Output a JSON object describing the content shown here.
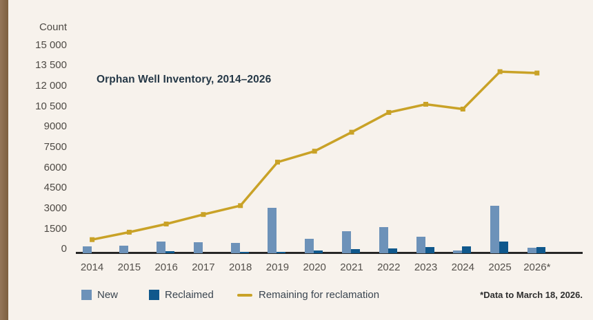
{
  "page": {
    "background_color": "#f7f2ec",
    "accent_bar_color": "#85684a"
  },
  "chart_data": {
    "type": "bar+line combo",
    "title": "Orphan Well Inventory, 2014–2026",
    "ylabel": "Count",
    "categories": [
      "2014",
      "2015",
      "2016",
      "2017",
      "2018",
      "2019",
      "2020",
      "2021",
      "2022",
      "2023",
      "2024",
      "2025",
      "2026*"
    ],
    "series": [
      {
        "name": "New",
        "type": "bar",
        "color": "#6d92b9",
        "values": [
          500,
          550,
          850,
          800,
          750,
          3350,
          1050,
          1600,
          1900,
          1200,
          200,
          3500,
          400
        ]
      },
      {
        "name": "Reclaimed",
        "type": "bar",
        "color": "#10588c",
        "values": [
          0,
          0,
          150,
          0,
          100,
          100,
          200,
          280,
          350,
          450,
          500,
          850,
          450
        ]
      },
      {
        "name": "Remaining for reclamation",
        "type": "line",
        "color": "#c9a227",
        "values": [
          950,
          1500,
          2100,
          2800,
          3450,
          6650,
          7450,
          8850,
          10300,
          10900,
          10550,
          13300,
          13200
        ]
      }
    ],
    "y_ticks": [
      "15 000",
      "13 500",
      "12 000",
      "10 500",
      "9000",
      "7500",
      "6000",
      "4500",
      "3000",
      "1500",
      "0"
    ],
    "ylim": [
      0,
      15000
    ],
    "y_tick_step": 1500,
    "grid": false,
    "legend_position": "bottom",
    "footnote": "*Data to March 18, 2026.",
    "axis_color": "#262626"
  }
}
